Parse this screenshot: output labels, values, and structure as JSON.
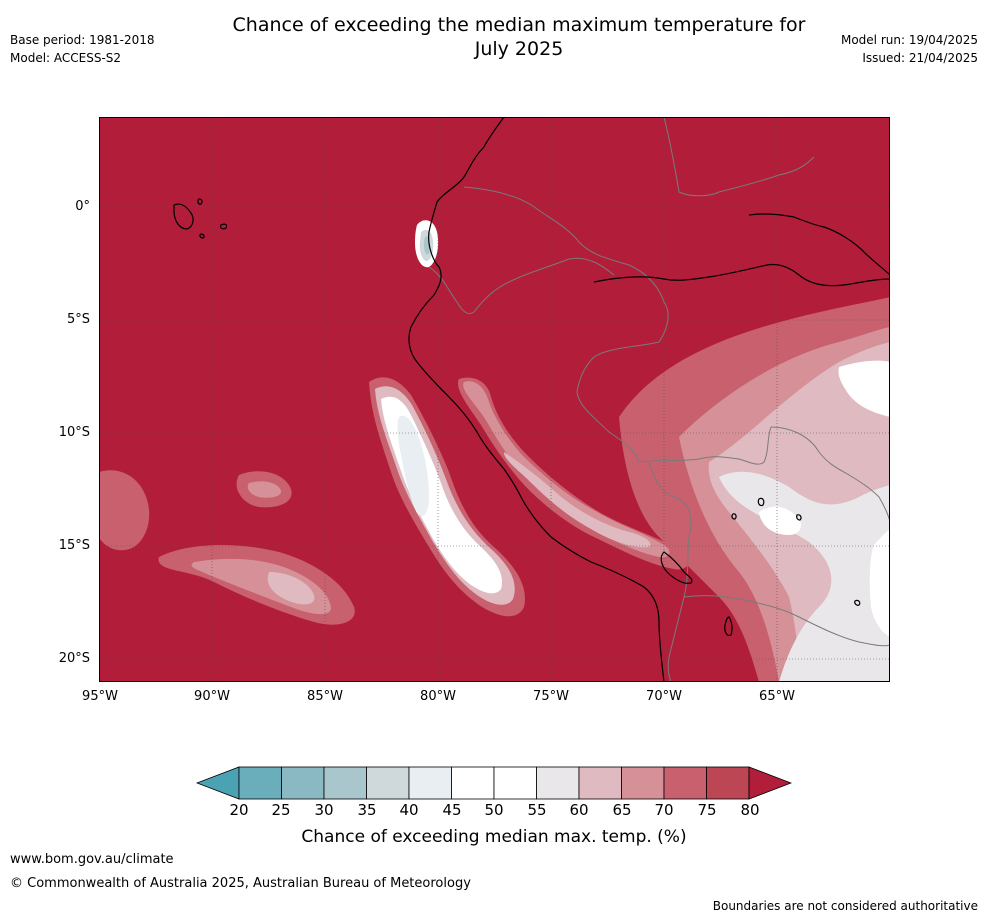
{
  "header": {
    "title_line1": "Chance of exceeding the median maximum temperature for",
    "title_line2": "July 2025",
    "base_period": "Base period: 1981-2018",
    "model": "Model: ACCESS-S2",
    "model_run": "Model run: 19/04/2025",
    "issued": "Issued: 21/04/2025"
  },
  "map": {
    "background_color": "#b21d3a",
    "lat_labels": [
      "0°",
      "5°S",
      "10°S",
      "15°S",
      "20°S"
    ],
    "lon_labels": [
      "95°W",
      "90°W",
      "85°W",
      "80°W",
      "75°W",
      "70°W",
      "65°W"
    ]
  },
  "legend": {
    "title": "Chance of exceeding median max. temp. (%)",
    "ticks": [
      "20",
      "25",
      "30",
      "35",
      "40",
      "45",
      "50",
      "55",
      "60",
      "65",
      "70",
      "75",
      "80"
    ],
    "colors": {
      "under": "#4ba2b2",
      "bins": [
        "#69aeba",
        "#8ab8c3",
        "#a8c6cc",
        "#cfd8db",
        "#e8eef1",
        "#ffffff",
        "#ffffff",
        "#eae7ea",
        "#e0bac1",
        "#d69198",
        "#c8606e",
        "#bd4655"
      ],
      "over": "#b21d3a"
    }
  },
  "footer": {
    "url": "www.bom.gov.au/climate",
    "copyright": "© Commonwealth of Australia 2025, Australian Bureau of Meteorology",
    "disclaimer": "Boundaries are not considered authoritative"
  }
}
